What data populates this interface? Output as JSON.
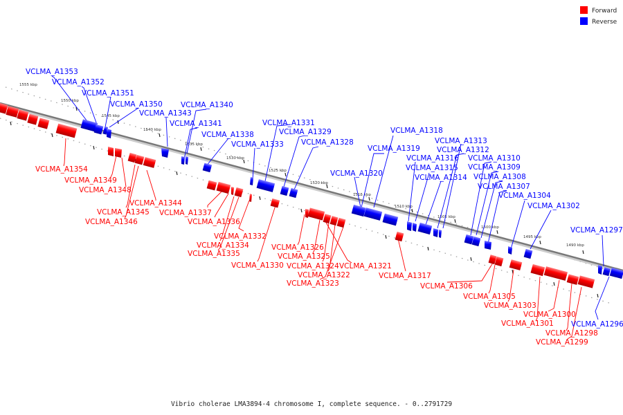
{
  "caption": "Vibrio cholerae LMA3894-4 chromosome I, complete sequence. - 0..2791729",
  "legend": [
    {
      "label": "Forward",
      "color": "#ff0000"
    },
    {
      "label": "Reverse",
      "color": "#0000ff"
    }
  ],
  "colors": {
    "forward": "#ff0000",
    "reverse": "#0000ff",
    "axis": "#888888"
  },
  "scale_labels": [
    "1555 kbp",
    "1550 kbp",
    "1545 kbp",
    "1540 kbp",
    "1535 kbp",
    "1530 kbp",
    "1525 kbp",
    "1520 kbp",
    "1515 kbp",
    "1510 kbp",
    "1505 kbp",
    "1500 kbp",
    "1495 kbp",
    "1490 kbp"
  ],
  "reverse_genes": [
    "VCLMA_A1353",
    "VCLMA_A1352",
    "VCLMA_A1351",
    "VCLMA_A1350",
    "VCLMA_A1343",
    "VCLMA_A1340",
    "VCLMA_A1341",
    "VCLMA_A1338",
    "VCLMA_A1333",
    "VCLMA_A1331",
    "VCLMA_A1329",
    "VCLMA_A1328",
    "VCLMA_A1318",
    "VCLMA_A1319",
    "VCLMA_A1320",
    "VCLMA_A1316",
    "VCLMA_A1315",
    "VCLMA_A1314",
    "VCLMA_A1313",
    "VCLMA_A1312",
    "VCLMA_A1310",
    "VCLMA_A1309",
    "VCLMA_A1308",
    "VCLMA_A1307",
    "VCLMA_A1304",
    "VCLMA_A1302",
    "VCLMA_A1297",
    "VCLMA_A1296"
  ],
  "forward_genes": [
    "VCLMA_A1354",
    "VCLMA_A1349",
    "VCLMA_A1348",
    "VCLMA_A1345",
    "VCLMA_A1346",
    "VCLMA_A1344",
    "VCLMA_A1337",
    "VCLMA_A1336",
    "VCLMA_A1332",
    "VCLMA_A1334",
    "VCLMA_A1335",
    "VCLMA_A1330",
    "VCLMA_A1326",
    "VCLMA_A1325",
    "VCLMA_A1324",
    "VCLMA_A1322",
    "VCLMA_A1323",
    "VCLMA_A1321",
    "VCLMA_A1317",
    "VCLMA_A1306",
    "VCLMA_A1305",
    "VCLMA_A1303",
    "VCLMA_A1301",
    "VCLMA_A1300",
    "VCLMA_A1298",
    "VCLMA_A1299"
  ]
}
